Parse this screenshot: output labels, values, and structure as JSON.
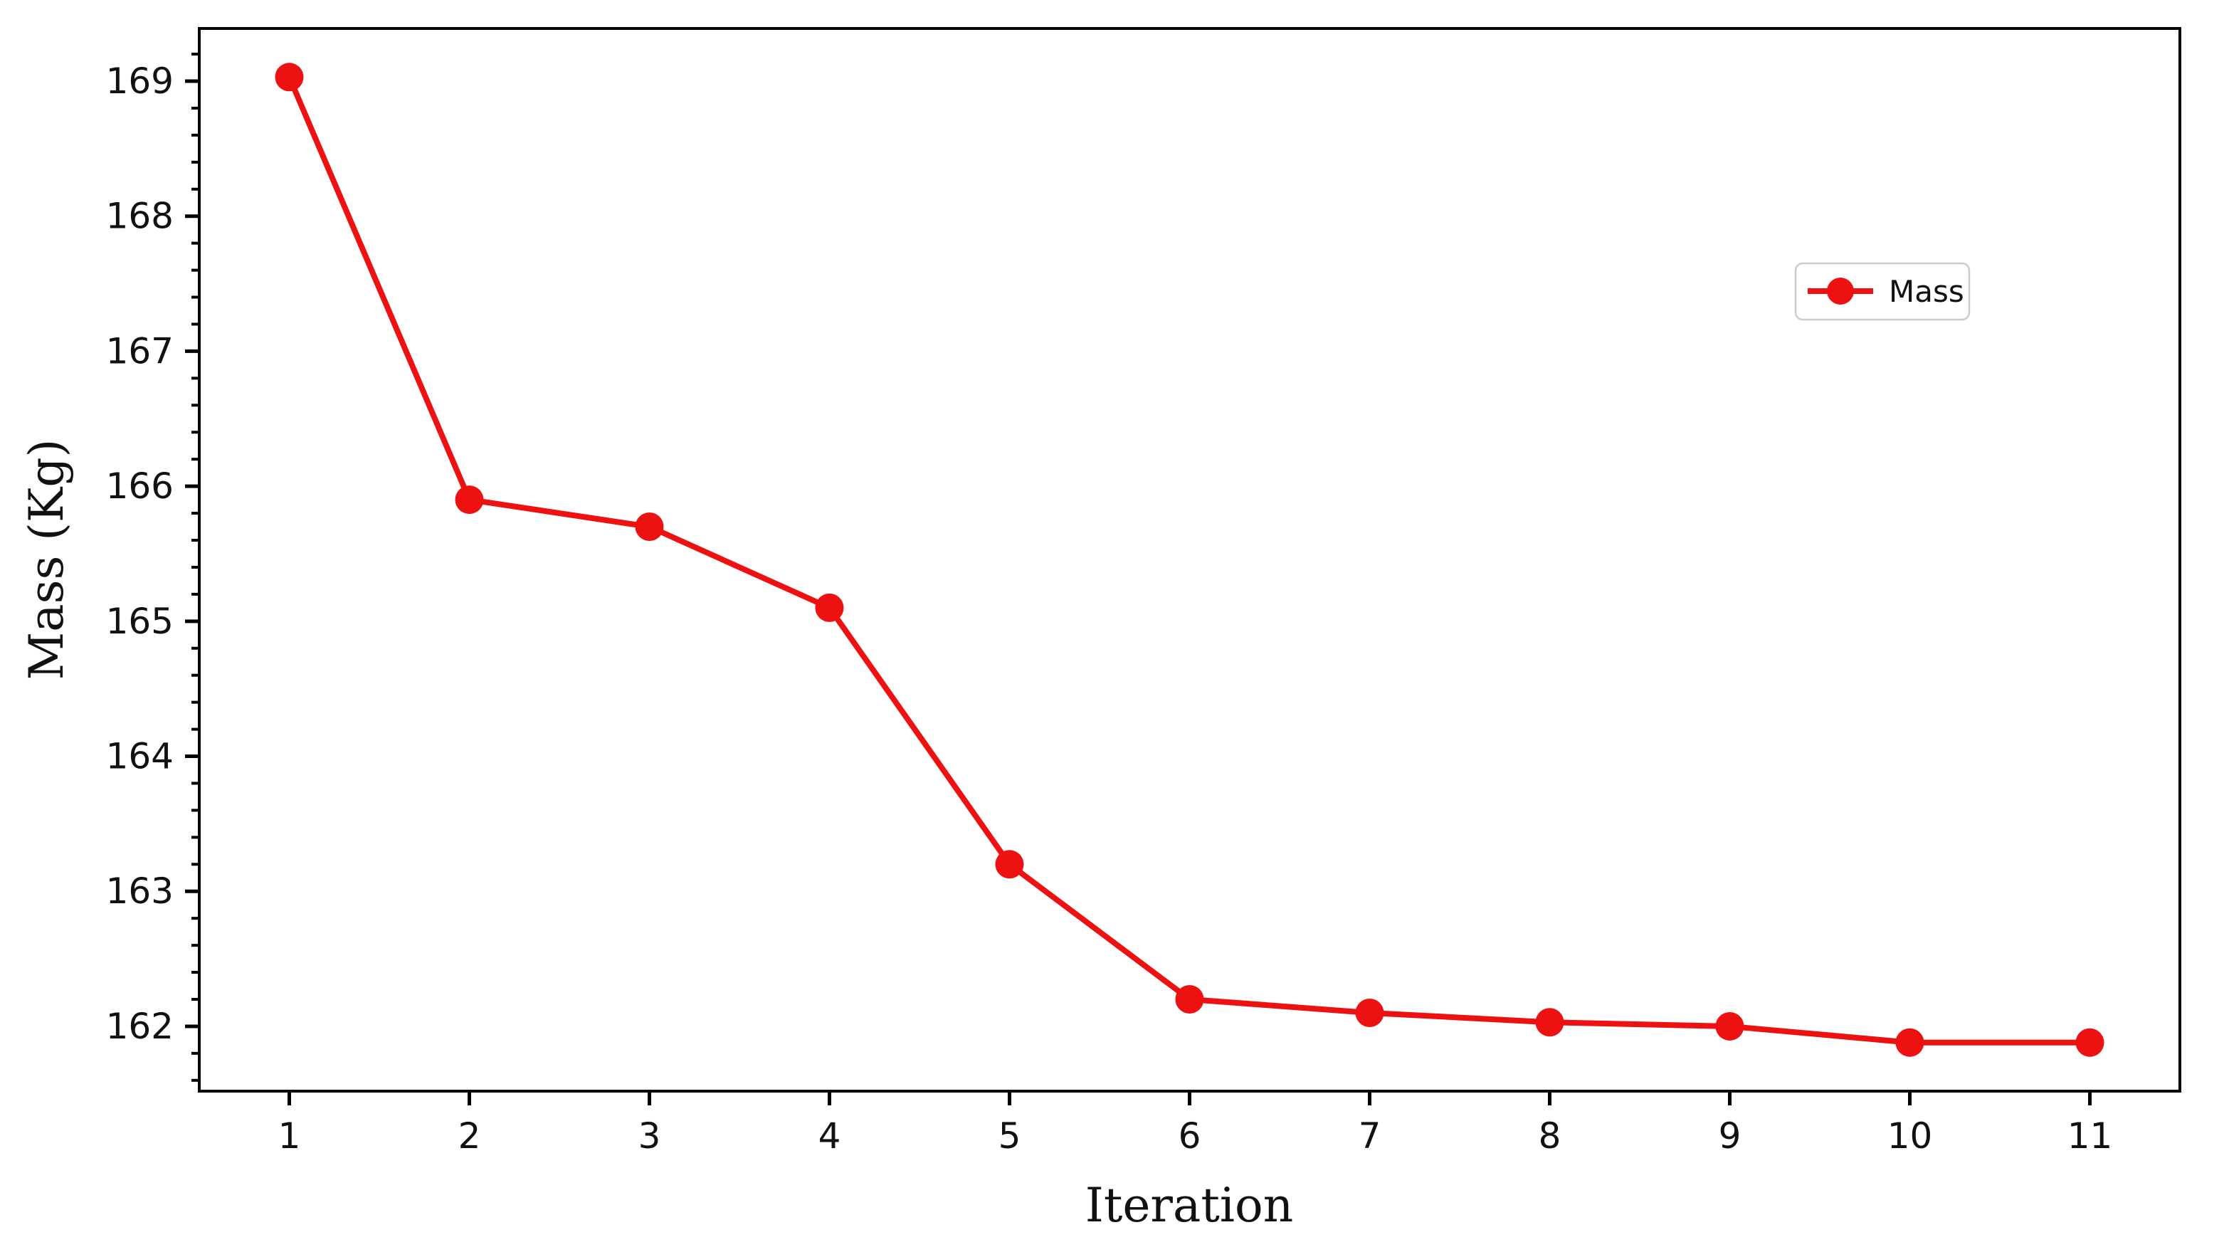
{
  "figure": {
    "background": "#ffffff",
    "axis_color": "#000000",
    "tick_label_color": "#111111"
  },
  "chart_data": {
    "type": "line",
    "title": "",
    "xlabel": "Iteration",
    "ylabel": "Mass (Kg)",
    "x": [
      1,
      2,
      3,
      4,
      5,
      6,
      7,
      8,
      9,
      10,
      11
    ],
    "series": [
      {
        "name": "Mass",
        "color": "#ee1111",
        "marker": "circle",
        "values": [
          169.03,
          165.9,
          165.7,
          165.1,
          163.2,
          162.2,
          162.1,
          162.03,
          162.0,
          161.88,
          161.88
        ]
      }
    ],
    "xlim": [
      0.5,
      11.5
    ],
    "ylim": [
      161.52,
      169.39
    ],
    "x_ticks": [
      1,
      2,
      3,
      4,
      5,
      6,
      7,
      8,
      9,
      10,
      11
    ],
    "y_ticks": [
      162,
      163,
      164,
      165,
      166,
      167,
      168,
      169
    ],
    "y_minor_tick_step": 0.2,
    "grid": false,
    "legend": {
      "label": "Mass",
      "position": "upper-right-inside",
      "border_color": "#cccccc",
      "background": "#ffffff"
    }
  }
}
